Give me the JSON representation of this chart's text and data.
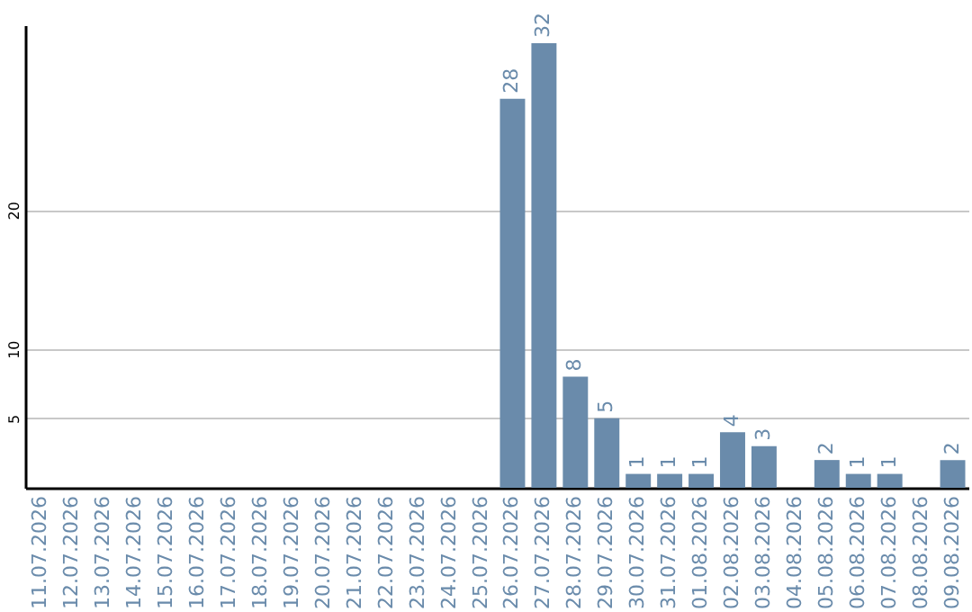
{
  "chart_data": {
    "type": "bar",
    "categories": [
      "11.07.2026",
      "12.07.2026",
      "13.07.2026",
      "14.07.2026",
      "15.07.2026",
      "16.07.2026",
      "17.07.2026",
      "18.07.2026",
      "19.07.2026",
      "20.07.2026",
      "21.07.2026",
      "22.07.2026",
      "23.07.2026",
      "24.07.2026",
      "25.07.2026",
      "26.07.2026",
      "27.07.2026",
      "28.07.2026",
      "29.07.2026",
      "30.07.2026",
      "31.07.2026",
      "01.08.2026",
      "02.08.2026",
      "03.08.2026",
      "04.08.2026",
      "05.08.2026",
      "06.08.2026",
      "07.08.2026",
      "08.08.2026",
      "09.08.2026"
    ],
    "values": [
      0,
      0,
      0,
      0,
      0,
      0,
      0,
      0,
      0,
      0,
      0,
      0,
      0,
      0,
      0,
      28,
      32,
      8,
      5,
      1,
      1,
      1,
      4,
      3,
      0,
      2,
      1,
      1,
      0,
      2
    ],
    "value_labels": [
      null,
      null,
      null,
      null,
      null,
      null,
      null,
      null,
      null,
      null,
      null,
      null,
      null,
      null,
      null,
      "28",
      "32",
      "8",
      "5",
      "1",
      "1",
      "1",
      "4",
      "3",
      null,
      "2",
      "1",
      "1",
      null,
      "2"
    ],
    "color": "#6a8bab",
    "ylim": [
      0,
      33.3
    ],
    "yticks": [
      5,
      10,
      20
    ],
    "grid": "y"
  }
}
